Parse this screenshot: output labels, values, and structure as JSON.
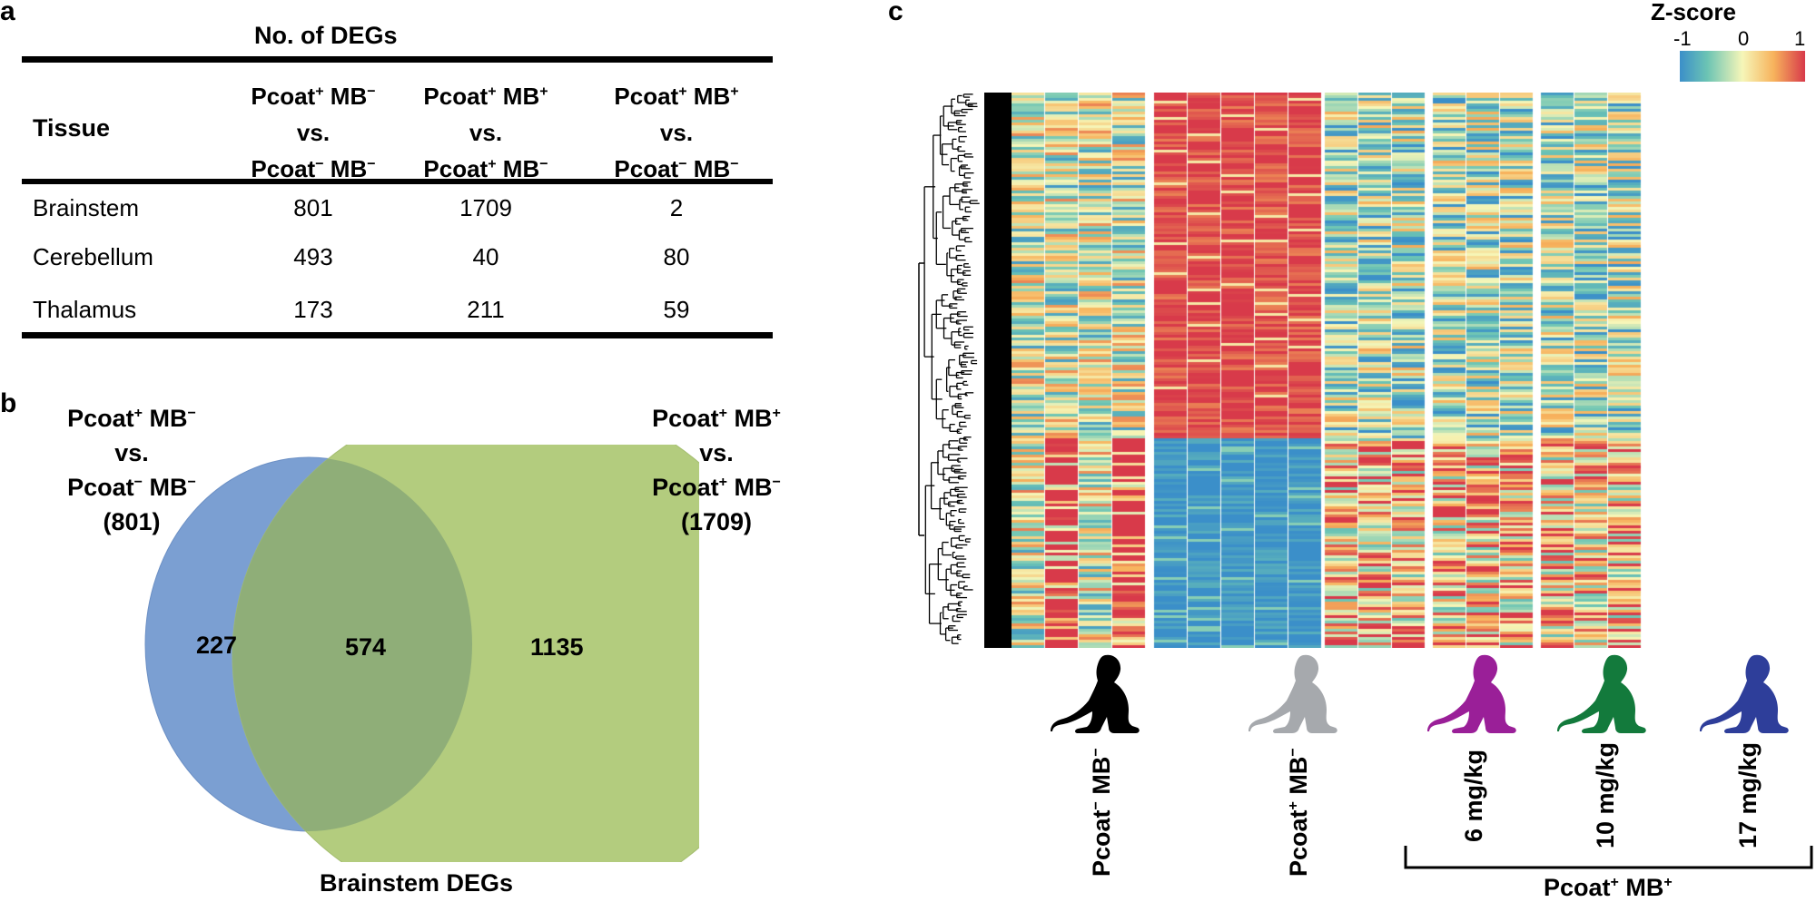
{
  "panel_a": {
    "letter": "a",
    "table_title": "No. of DEGs",
    "tissue_header": "Tissue",
    "columns": [
      {
        "line1_a": "Pcoat",
        "line1_sup1": "+",
        "line1_b": " MB",
        "line1_sup2": "−",
        "line2": "vs.",
        "line3_a": "Pcoat",
        "line3_sup1": "−",
        "line3_b": " MB",
        "line3_sup2": "−"
      },
      {
        "line1_a": "Pcoat",
        "line1_sup1": "+",
        "line1_b": " MB",
        "line1_sup2": "+",
        "line2": "vs.",
        "line3_a": "Pcoat",
        "line3_sup1": "+",
        "line3_b": " MB",
        "line3_sup2": "−"
      },
      {
        "line1_a": "Pcoat",
        "line1_sup1": "+",
        "line1_b": " MB",
        "line1_sup2": "+",
        "line2": "vs.",
        "line3_a": "Pcoat",
        "line3_sup1": "−",
        "line3_b": " MB",
        "line3_sup2": "−"
      }
    ],
    "rows": [
      {
        "tissue": "Brainstem",
        "values": [
          "801",
          "1709",
          "2"
        ]
      },
      {
        "tissue": "Cerebellum",
        "values": [
          "493",
          "40",
          "80"
        ]
      },
      {
        "tissue": "Thalamus",
        "values": [
          "173",
          "211",
          "59"
        ]
      }
    ]
  },
  "panel_b": {
    "letter": "b",
    "left_label": {
      "l1a": "Pcoat",
      "l1s1": "+",
      "l1b": " MB",
      "l1s2": "−",
      "l2": "vs.",
      "l3a": "Pcoat",
      "l3s1": "−",
      "l3b": " MB",
      "l3s2": "−",
      "l4": "(801)"
    },
    "right_label": {
      "l1a": "Pcoat",
      "l1s1": "+",
      "l1b": " MB",
      "l1s2": "+",
      "l2": "vs.",
      "l3a": "Pcoat",
      "l3s1": "+",
      "l3b": " MB",
      "l3s2": "−",
      "l4": "(1709)"
    },
    "only_left": "227",
    "overlap": "574",
    "only_right": "1135",
    "caption": "Brainstem DEGs",
    "colors": {
      "left": "#7b9fd2",
      "right": "#b3cc7e",
      "overlap": "#8fae78"
    }
  },
  "panel_c": {
    "letter": "c",
    "legend_title": "Z-score",
    "legend_ticks": [
      "-1",
      "0",
      "1"
    ],
    "group_labels": [
      {
        "a": "Pcoat",
        "s1": "−",
        "b": " MB",
        "s2": "−",
        "icon_color": "#000000"
      },
      {
        "a": "Pcoat",
        "s1": "+",
        "b": " MB",
        "s2": "−",
        "icon_color": "#a6a9ad"
      },
      {
        "text": "6 mg/kg",
        "icon_color": "#9a1f98"
      },
      {
        "text": "10 mg/kg",
        "icon_color": "#137a3c"
      },
      {
        "text": "17 mg/kg",
        "icon_color": "#2e3e9a"
      }
    ],
    "bracket_label": {
      "a": "Pcoat",
      "s1": "+",
      "b": " MB",
      "s2": "+"
    }
  }
}
